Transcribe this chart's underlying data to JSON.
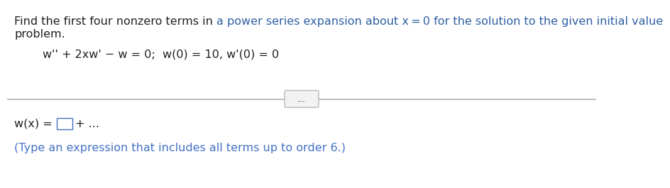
{
  "bg_color": "#ffffff",
  "line1_part1": "Find the first four nonzero terms in ",
  "line1_part2": "a power series expansion about x = 0 for the solution to the given initial value",
  "line2": "problem.",
  "equation": "w'' + 2xw' − w = 0;  w(0) = 10, w'(0) = 0",
  "answer_prefix": "w(x) = ",
  "answer_suffix": "+ ...",
  "hint_text": "(Type an expression that includes all terms up to order 6.)",
  "dots_label": "...",
  "font_size": 11.5,
  "text_color_black": "#231f20",
  "text_color_blue": "#2e5fa3",
  "text_color_eq_blue": "#c0392b",
  "hint_color": "#4472c4",
  "box_edge_color": "#4472c4",
  "divider_color": "#999999",
  "btn_edge_color": "#aaaaaa",
  "btn_face_color": "#f2f2f2"
}
